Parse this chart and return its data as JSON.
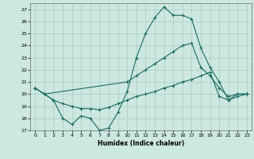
{
  "xlabel": "Humidex (Indice chaleur)",
  "background_color": "#cce8e0",
  "grid_color": "#aaccC4",
  "line_color": "#1a6b60",
  "xlim": [
    -0.5,
    23.5
  ],
  "ylim": [
    17,
    27.5
  ],
  "xticks": [
    0,
    1,
    2,
    3,
    4,
    5,
    6,
    7,
    8,
    9,
    10,
    11,
    12,
    13,
    14,
    15,
    16,
    17,
    18,
    19,
    20,
    21,
    22,
    23
  ],
  "yticks": [
    17,
    18,
    19,
    20,
    21,
    22,
    23,
    24,
    25,
    26,
    27
  ],
  "line1_x": [
    0,
    1,
    2,
    3,
    4,
    5,
    6,
    7,
    8,
    9,
    10,
    11,
    12,
    13,
    14,
    15,
    16,
    17,
    18,
    19,
    20,
    21,
    22,
    23
  ],
  "line1_y": [
    20.5,
    20.0,
    19.5,
    18.0,
    17.5,
    18.2,
    18.0,
    17.0,
    17.2,
    18.5,
    20.2,
    23.0,
    25.0,
    26.3,
    27.2,
    26.5,
    26.5,
    26.2,
    23.8,
    22.2,
    21.0,
    19.5,
    20.0,
    20.0
  ],
  "line2_x": [
    0,
    1,
    10,
    11,
    12,
    13,
    14,
    15,
    16,
    17,
    18,
    19,
    20,
    21,
    22,
    23
  ],
  "line2_y": [
    20.5,
    20.0,
    21.0,
    21.5,
    22.0,
    22.5,
    23.0,
    23.5,
    24.0,
    24.2,
    22.2,
    21.5,
    20.5,
    19.8,
    20.0,
    20.0
  ],
  "line3_x": [
    0,
    1,
    2,
    3,
    4,
    5,
    6,
    7,
    8,
    9,
    10,
    11,
    12,
    13,
    14,
    15,
    16,
    17,
    18,
    19,
    20,
    21,
    22,
    23
  ],
  "line3_y": [
    20.5,
    20.0,
    19.5,
    19.2,
    19.0,
    18.8,
    18.8,
    18.7,
    18.9,
    19.2,
    19.5,
    19.8,
    20.0,
    20.2,
    20.5,
    20.7,
    21.0,
    21.2,
    21.5,
    21.8,
    19.8,
    19.5,
    19.8,
    20.0
  ]
}
